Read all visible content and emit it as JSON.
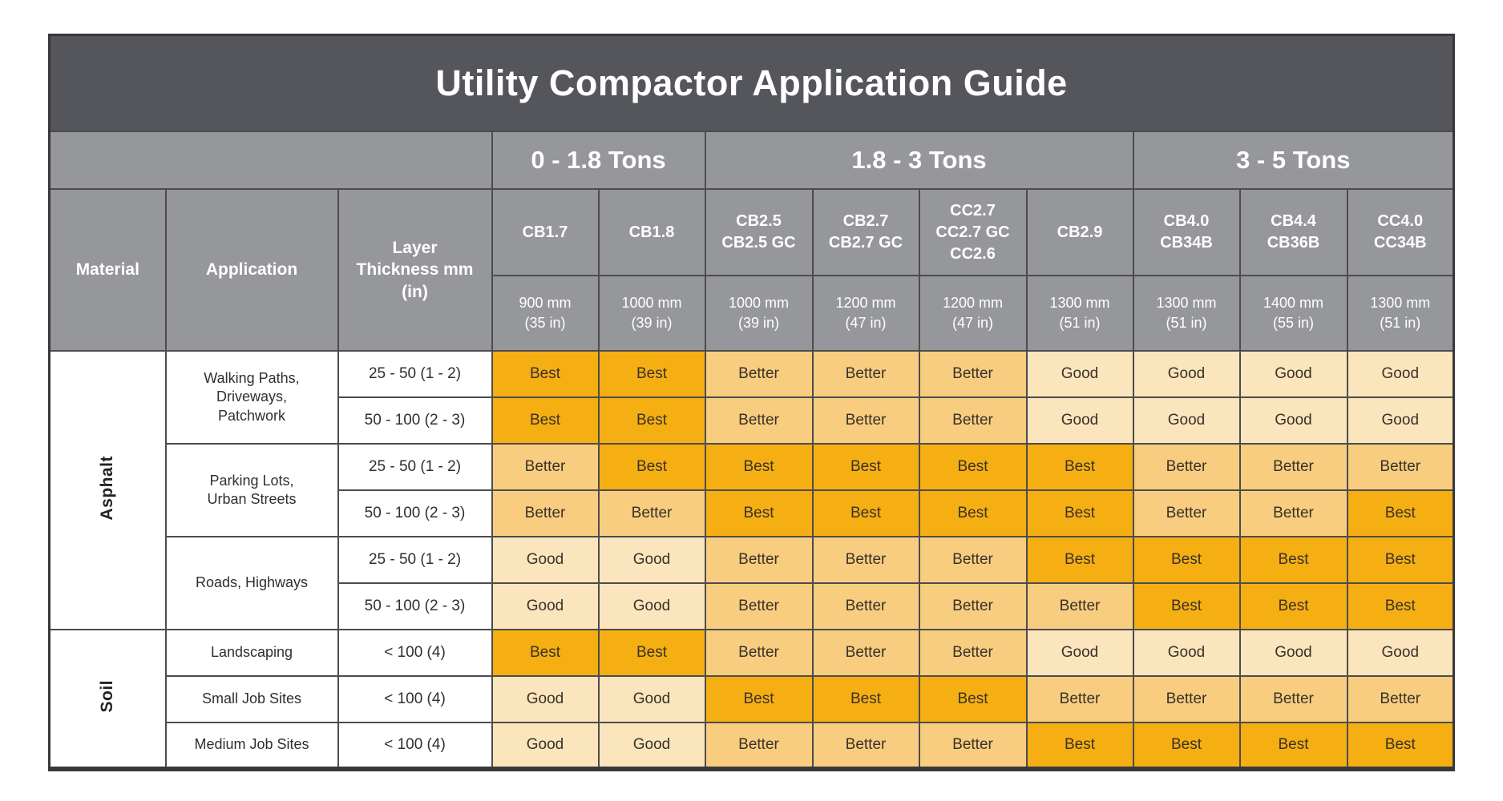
{
  "title": "Utility Compactor Application Guide",
  "colors": {
    "best": "#F5AF12",
    "better": "#F8CD80",
    "good": "#FAE5BC",
    "header_dark": "#54565B",
    "header_gray": "#96979A",
    "rating_text": "#3A3128"
  },
  "chart_data": {
    "type": "table",
    "title": "Utility Compactor Application Guide",
    "column_headers": {
      "material": "Material",
      "application": "Application",
      "layer_thickness": "Layer\nThickness mm\n(in)"
    },
    "weight_classes": [
      {
        "label": "0 - 1.8 Tons",
        "span": 2
      },
      {
        "label": "1.8 - 3 Tons",
        "span": 4
      },
      {
        "label": "3 - 5 Tons",
        "span": 3
      }
    ],
    "models": [
      {
        "name": "CB1.7",
        "width": "900 mm\n(35 in)"
      },
      {
        "name": "CB1.8",
        "width": "1000 mm\n(39 in)"
      },
      {
        "name": "CB2.5\nCB2.5 GC",
        "width": "1000 mm\n(39 in)"
      },
      {
        "name": "CB2.7\nCB2.7 GC",
        "width": "1200 mm\n(47 in)"
      },
      {
        "name": "CC2.7\nCC2.7 GC\nCC2.6",
        "width": "1200 mm\n(47 in)"
      },
      {
        "name": "CB2.9",
        "width": "1300 mm\n(51 in)"
      },
      {
        "name": "CB4.0\nCB34B",
        "width": "1300 mm\n(51 in)"
      },
      {
        "name": "CB4.4\nCB36B",
        "width": "1400 mm\n(55 in)"
      },
      {
        "name": "CC4.0\nCC34B",
        "width": "1300 mm\n(51 in)"
      }
    ],
    "materials": [
      {
        "name": "Asphalt",
        "applications": [
          {
            "name": "Walking Paths,\nDriveways,\nPatchwork",
            "rows": [
              {
                "thickness": "25 - 50 (1 - 2)",
                "ratings": [
                  "Best",
                  "Best",
                  "Better",
                  "Better",
                  "Better",
                  "Good",
                  "Good",
                  "Good",
                  "Good"
                ]
              },
              {
                "thickness": "50 - 100 (2 - 3)",
                "ratings": [
                  "Best",
                  "Best",
                  "Better",
                  "Better",
                  "Better",
                  "Good",
                  "Good",
                  "Good",
                  "Good"
                ]
              }
            ]
          },
          {
            "name": "Parking Lots,\nUrban Streets",
            "rows": [
              {
                "thickness": "25 - 50 (1 - 2)",
                "ratings": [
                  "Better",
                  "Best",
                  "Best",
                  "Best",
                  "Best",
                  "Best",
                  "Better",
                  "Better",
                  "Better"
                ]
              },
              {
                "thickness": "50 - 100 (2 - 3)",
                "ratings": [
                  "Better",
                  "Better",
                  "Best",
                  "Best",
                  "Best",
                  "Best",
                  "Better",
                  "Better",
                  "Best"
                ]
              }
            ]
          },
          {
            "name": "Roads, Highways",
            "rows": [
              {
                "thickness": "25 - 50 (1 - 2)",
                "ratings": [
                  "Good",
                  "Good",
                  "Better",
                  "Better",
                  "Better",
                  "Best",
                  "Best",
                  "Best",
                  "Best"
                ]
              },
              {
                "thickness": "50 - 100 (2 - 3)",
                "ratings": [
                  "Good",
                  "Good",
                  "Better",
                  "Better",
                  "Better",
                  "Better",
                  "Best",
                  "Best",
                  "Best"
                ]
              }
            ]
          }
        ]
      },
      {
        "name": "Soil",
        "applications": [
          {
            "name": "Landscaping",
            "rows": [
              {
                "thickness": "< 100 (4)",
                "ratings": [
                  "Best",
                  "Best",
                  "Better",
                  "Better",
                  "Better",
                  "Good",
                  "Good",
                  "Good",
                  "Good"
                ]
              }
            ]
          },
          {
            "name": "Small Job Sites",
            "rows": [
              {
                "thickness": "< 100 (4)",
                "ratings": [
                  "Good",
                  "Good",
                  "Best",
                  "Best",
                  "Best",
                  "Better",
                  "Better",
                  "Better",
                  "Better"
                ]
              }
            ]
          },
          {
            "name": "Medium Job Sites",
            "rows": [
              {
                "thickness": "< 100 (4)",
                "ratings": [
                  "Good",
                  "Good",
                  "Better",
                  "Better",
                  "Better",
                  "Best",
                  "Best",
                  "Best",
                  "Best"
                ]
              }
            ]
          }
        ]
      }
    ]
  }
}
